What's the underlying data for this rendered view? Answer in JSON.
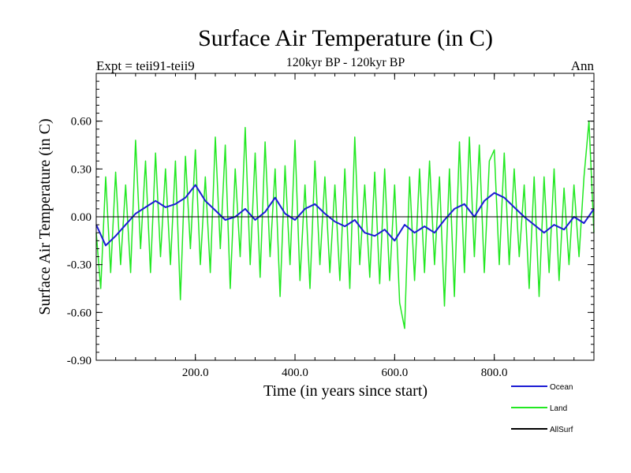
{
  "chart_data": {
    "type": "line",
    "title": "Surface Air Temperature (in C)",
    "subtitle": "120kyr BP - 120kyr BP",
    "left_label": "Expt = teii91-teii9",
    "right_label": "Ann",
    "xlabel": "Time (in years since start)",
    "ylabel": "Surface Air Temperature (in C)",
    "xlim": [
      1,
      1000
    ],
    "ylim": [
      -0.9,
      0.9
    ],
    "x_ticks": [
      200,
      400,
      600,
      800
    ],
    "x_tick_labels": [
      "200.0",
      "400.0",
      "600.0",
      "800.0"
    ],
    "y_ticks": [
      -0.9,
      -0.6,
      -0.3,
      0.0,
      0.3,
      0.6
    ],
    "y_tick_labels": [
      "-0.90",
      "-0.60",
      "-0.30",
      "0.00",
      "0.30",
      "0.60"
    ],
    "zero_line": true,
    "grid": false,
    "legend_position": "bottom-right",
    "series": [
      {
        "name": "Ocean",
        "color": "#1c1cd4",
        "x": [
          1,
          20,
          40,
          60,
          80,
          100,
          120,
          140,
          160,
          180,
          200,
          220,
          240,
          260,
          280,
          300,
          320,
          340,
          360,
          380,
          400,
          420,
          440,
          460,
          480,
          500,
          520,
          540,
          560,
          580,
          600,
          620,
          640,
          660,
          680,
          700,
          720,
          740,
          760,
          780,
          800,
          820,
          840,
          860,
          880,
          900,
          920,
          940,
          960,
          980,
          1000
        ],
        "values": [
          -0.05,
          -0.18,
          -0.12,
          -0.05,
          0.02,
          0.06,
          0.1,
          0.06,
          0.08,
          0.12,
          0.2,
          0.1,
          0.04,
          -0.02,
          0.0,
          0.05,
          -0.02,
          0.03,
          0.12,
          0.02,
          -0.02,
          0.05,
          0.08,
          0.02,
          -0.03,
          -0.06,
          -0.02,
          -0.1,
          -0.12,
          -0.08,
          -0.15,
          -0.05,
          -0.1,
          -0.06,
          -0.1,
          -0.02,
          0.05,
          0.08,
          0.0,
          0.1,
          0.15,
          0.12,
          0.06,
          0.0,
          -0.05,
          -0.1,
          -0.05,
          -0.08,
          0.0,
          -0.04,
          0.05
        ]
      },
      {
        "name": "Land",
        "color": "#22e822",
        "x": [
          1,
          10,
          20,
          30,
          40,
          50,
          60,
          70,
          80,
          90,
          100,
          110,
          120,
          130,
          140,
          150,
          160,
          170,
          180,
          190,
          200,
          210,
          220,
          230,
          240,
          250,
          260,
          270,
          280,
          290,
          300,
          310,
          320,
          330,
          340,
          350,
          360,
          370,
          380,
          390,
          400,
          410,
          420,
          430,
          440,
          450,
          460,
          470,
          480,
          490,
          500,
          510,
          520,
          530,
          540,
          550,
          560,
          570,
          580,
          590,
          600,
          610,
          620,
          630,
          640,
          650,
          660,
          670,
          680,
          690,
          700,
          710,
          720,
          730,
          740,
          750,
          760,
          770,
          780,
          790,
          800,
          810,
          820,
          830,
          840,
          850,
          860,
          870,
          880,
          890,
          900,
          910,
          920,
          930,
          940,
          950,
          960,
          970,
          980,
          990,
          1000
        ],
        "values": [
          -0.1,
          -0.45,
          0.25,
          -0.35,
          0.28,
          -0.3,
          0.2,
          -0.35,
          0.48,
          -0.2,
          0.35,
          -0.35,
          0.4,
          -0.25,
          0.3,
          -0.3,
          0.35,
          -0.52,
          0.38,
          -0.2,
          0.42,
          -0.3,
          0.25,
          -0.35,
          0.5,
          -0.2,
          0.45,
          -0.45,
          0.3,
          -0.25,
          0.56,
          -0.3,
          0.4,
          -0.38,
          0.47,
          -0.25,
          0.3,
          -0.5,
          0.32,
          -0.3,
          0.48,
          -0.4,
          0.2,
          -0.45,
          0.35,
          -0.3,
          0.25,
          -0.35,
          0.2,
          -0.4,
          0.3,
          -0.45,
          0.5,
          -0.3,
          0.2,
          -0.38,
          0.28,
          -0.42,
          0.3,
          -0.4,
          0.2,
          -0.54,
          -0.7,
          0.25,
          -0.4,
          0.3,
          -0.35,
          0.35,
          -0.3,
          0.25,
          -0.56,
          0.3,
          -0.5,
          0.47,
          -0.35,
          0.5,
          -0.25,
          0.45,
          -0.35,
          0.35,
          0.42,
          -0.3,
          0.4,
          -0.3,
          0.3,
          -0.25,
          0.2,
          -0.45,
          0.25,
          -0.5,
          0.25,
          -0.35,
          0.3,
          -0.4,
          0.18,
          -0.3,
          0.2,
          -0.25,
          0.25,
          0.6,
          -0.1
        ]
      },
      {
        "name": "AllSurf",
        "color": "#000000",
        "x": [],
        "values": []
      }
    ]
  }
}
